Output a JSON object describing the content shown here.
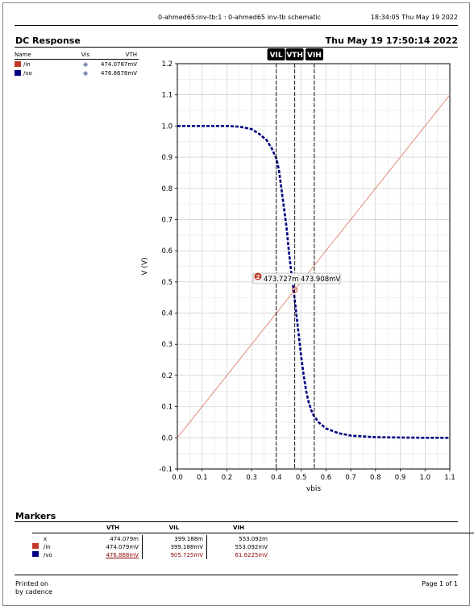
{
  "header": {
    "window_title": "0-ahmed65:inv-tb:1 : 0-ahmed65 inv-tb schematic",
    "time_date": "18:34:05  Thu May 19 2022"
  },
  "section": {
    "title": "DC Response",
    "date": "Thu May 19 17:50:14 2022"
  },
  "legend": {
    "headers": [
      "Name",
      "Vis",
      "VTH"
    ],
    "entries": [
      {
        "name": "/in",
        "color": "#c0392b",
        "vis": "◉",
        "vth": "474.0787mV"
      },
      {
        "name": "/vo",
        "color": "#000080",
        "vis": "◉",
        "vth": "476.8678mV"
      }
    ]
  },
  "chart_data": {
    "type": "line",
    "xlabel": "vbis",
    "ylabel": "V (V)",
    "xlim": [
      0.0,
      1.1
    ],
    "ylim": [
      -0.1,
      1.2
    ],
    "x_ticks": [
      "0.0",
      "0.1",
      "0.2",
      "0.3",
      "0.4",
      "0.5",
      "0.6",
      "0.7",
      "0.8",
      "0.9",
      "1.0",
      "1.1"
    ],
    "y_ticks": [
      "-0.1",
      "0.0",
      "0.1",
      "0.2",
      "0.3",
      "0.4",
      "0.5",
      "0.6",
      "0.7",
      "0.8",
      "0.9",
      "1.0",
      "1.1",
      "1.2"
    ],
    "grid": true,
    "series": [
      {
        "name": "/in",
        "color": "#e08070",
        "style": "solid",
        "x": [
          0.0,
          1.1
        ],
        "y": [
          0.0,
          1.1
        ]
      },
      {
        "name": "/vo",
        "color": "#000080",
        "style": "dashed",
        "x": [
          0.0,
          0.1,
          0.2,
          0.25,
          0.3,
          0.33,
          0.36,
          0.38,
          0.4,
          0.41,
          0.42,
          0.43,
          0.44,
          0.45,
          0.46,
          0.47,
          0.48,
          0.49,
          0.5,
          0.51,
          0.52,
          0.53,
          0.54,
          0.55,
          0.57,
          0.6,
          0.65,
          0.7,
          0.8,
          0.9,
          1.0,
          1.1
        ],
        "y": [
          1.0,
          1.0,
          1.0,
          0.998,
          0.99,
          0.975,
          0.955,
          0.93,
          0.895,
          0.86,
          0.8,
          0.74,
          0.68,
          0.6,
          0.53,
          0.47,
          0.4,
          0.33,
          0.26,
          0.2,
          0.15,
          0.115,
          0.09,
          0.072,
          0.05,
          0.03,
          0.015,
          0.007,
          0.002,
          0.001,
          0.0,
          0.0
        ]
      }
    ],
    "vlines": [
      {
        "label": "VIL",
        "x": 0.399
      },
      {
        "label": "VTH",
        "x": 0.474
      },
      {
        "label": "VIH",
        "x": 0.553
      }
    ],
    "intersection": {
      "x": 0.474,
      "y": 0.474,
      "marker": "2",
      "label_x": "473.727m",
      "label_y": "473.908mV"
    }
  },
  "markers": {
    "title": "Markers",
    "headers": [
      "",
      "",
      "VTH",
      "VIL",
      "VIH"
    ],
    "rows": [
      {
        "swatch": "",
        "name": "x",
        "vth": "474.079m",
        "vil": "399.188m",
        "vih": "553.092m"
      },
      {
        "swatch": "#c0392b",
        "name": "/in",
        "vth": "474.079mV",
        "vil": "399.188mV",
        "vih": "553.092mV"
      },
      {
        "swatch": "#000080",
        "name": "/vo",
        "vth": "476.868mV",
        "vil": "905.725mV",
        "vih": "61.6225mV"
      }
    ]
  },
  "footer": {
    "printed_on": "Printed on",
    "by": "by cadence",
    "page": "Page 1 of 1"
  }
}
